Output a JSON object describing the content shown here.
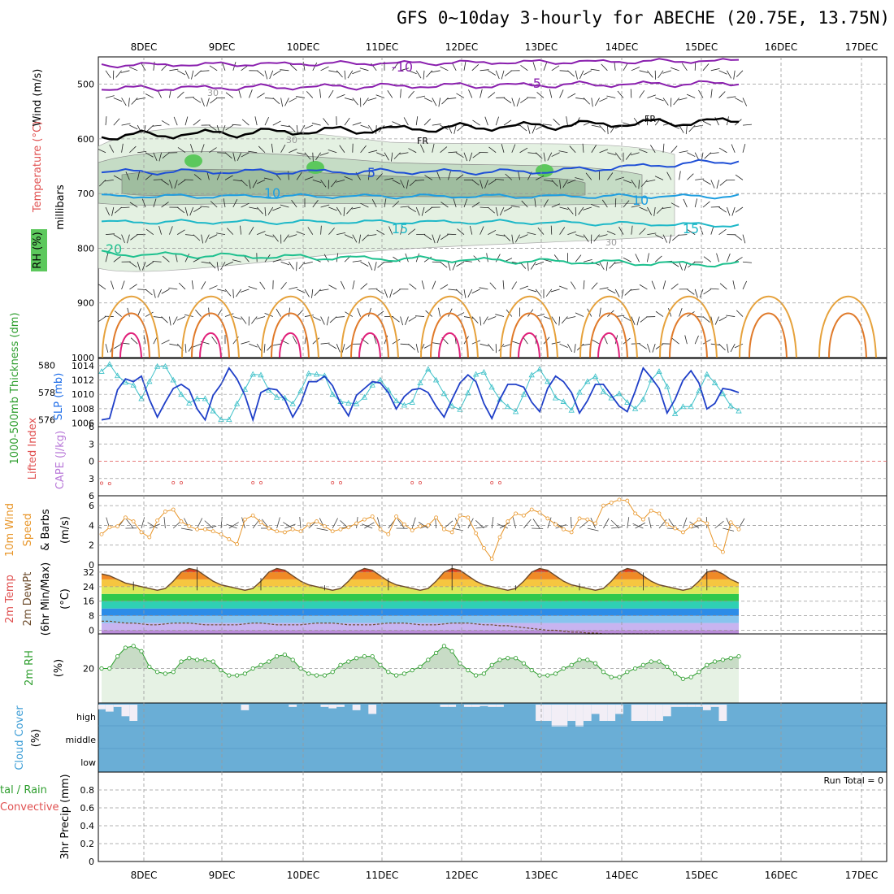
{
  "title": "GFS 0~10day 3-hourly for ABECHE (20.75E, 13.75N)",
  "colors": {
    "temp_neg10": "#8a1fae",
    "temp_neg5": "#8a1fae",
    "freezing": "#000000",
    "temp_5": "#1f4fd6",
    "temp_10": "#1e9ee0",
    "temp_15": "#1eb8c8",
    "temp_20": "#1ec08e",
    "thickness": "#1f3fc8",
    "slp": "#3cc0c8",
    "wind_speed": "#e8962a",
    "cloud_cover": "#6aaed6",
    "rh2m": "#2e9e2e"
  },
  "panels": {
    "upper": {
      "label_wind": "Wind (m/s)",
      "label_temp": "Temperature (°C)",
      "label_rh": "RH (%)",
      "label_mb": "millibars",
      "yticks": [
        "500",
        "600",
        "700",
        "800",
        "900",
        "1000"
      ],
      "contour_labels": [
        "-10",
        "-5",
        "FR",
        "FR",
        "5",
        "10",
        "10",
        "15",
        "15",
        "20",
        "30",
        "30",
        "30"
      ]
    },
    "thickness": {
      "label_thick": "1000-500mb Thickness (dm)",
      "label_slp": "SLP (mb)",
      "yticks_left": [
        "580",
        "578",
        "576"
      ],
      "yticks_right": [
        "1014",
        "1012",
        "1010",
        "1008",
        "1006"
      ]
    },
    "lifted": {
      "label_li": "Lifted Index",
      "label_cape": "CAPE (J/kg)",
      "yticks": [
        "-6",
        "-3",
        "0",
        "3",
        "6"
      ]
    },
    "wind10": {
      "label": "10m Wind",
      "label_speed": "Speed",
      "label_barbs": "& Barbs",
      "unit": "(m/s)",
      "yticks": [
        "6",
        "4",
        "2",
        "0"
      ]
    },
    "temp2m": {
      "label1": "2m Temp",
      "label2": "2m DewPt",
      "label3": "(6hr Min/Max)",
      "unit": "(°C)",
      "yticks": [
        "32",
        "24",
        "16",
        "8",
        "0"
      ]
    },
    "rh2m": {
      "label": "2m RH",
      "unit": "(%)",
      "yticks": [
        "20"
      ]
    },
    "cloud": {
      "label": "Cloud Cover",
      "unit": "(%)",
      "levels": [
        "high",
        "middle",
        "low"
      ]
    },
    "precip": {
      "label1": "tal / Rain",
      "label2": "Convective",
      "label3": "3hr Precip (mm)",
      "yticks": [
        "0.8",
        "0.6",
        "0.4",
        "0.2",
        "0"
      ],
      "run_total": "Run Total = 0"
    }
  },
  "chart_data": {
    "type": "line",
    "x_dates": [
      "8DEC",
      "9DEC",
      "10DEC",
      "11DEC",
      "12DEC",
      "13DEC",
      "14DEC",
      "15DEC",
      "16DEC",
      "17DEC"
    ],
    "time_step_hours": 3,
    "thickness_dm": [
      576.0,
      576.1,
      578.2,
      579.0,
      578.8,
      579.2,
      577.5,
      576.2,
      577.3,
      578.3,
      578.6,
      578.2,
      576.8,
      576.0,
      577.8,
      578.6,
      579.8,
      579.0,
      577.8,
      576.0,
      578.0,
      578.3,
      578.2,
      577.5,
      576.2,
      577.2,
      578.8,
      578.8,
      579.2,
      578.5,
      577.2,
      576.3,
      577.8,
      578.3,
      578.8,
      578.7,
      578.0,
      576.8,
      577.7,
      578.2,
      578.3,
      578.0,
      577.0,
      576.2,
      577.5,
      578.7,
      579.3,
      578.8,
      577.2,
      576.1,
      577.5,
      578.6,
      578.6,
      578.4,
      577.3,
      576.6,
      578.3,
      579.2,
      578.8,
      578.0,
      576.5,
      577.4,
      578.6,
      578.6,
      577.8,
      577.0,
      576.6,
      578.1,
      579.8,
      579.1,
      578.3,
      576.5,
      577.5,
      578.9,
      579.6,
      578.7,
      576.8,
      577.2,
      578.3,
      578.2,
      578.0
    ],
    "slp_mb": [
      1013.2,
      1014.2,
      1012.6,
      1011.7,
      1011.3,
      1009.4,
      1011.8,
      1013.9,
      1013.9,
      1012.0,
      1010.0,
      1008.8,
      1009.4,
      1009.4,
      1007.7,
      1006.5,
      1006.5,
      1008.7,
      1010.7,
      1012.8,
      1012.7,
      1010.6,
      1009.6,
      1009.5,
      1008.7,
      1010.5,
      1012.9,
      1012.8,
      1012.6,
      1010.0,
      1009.0,
      1008.8,
      1008.7,
      1009.6,
      1011.3,
      1012.0,
      1010.6,
      1009.1,
      1008.5,
      1008.9,
      1011.6,
      1013.5,
      1012.0,
      1010.1,
      1008.4,
      1007.9,
      1010.2,
      1012.8,
      1013.1,
      1011.0,
      1009.3,
      1008.3,
      1007.6,
      1010.0,
      1012.7,
      1013.5,
      1011.8,
      1009.5,
      1009.0,
      1007.8,
      1010.3,
      1011.8,
      1012.5,
      1010.4,
      1009.5,
      1010.1,
      1008.9,
      1008.0,
      1009.3,
      1012.0,
      1013.2,
      1011.1,
      1007.3,
      1008.3,
      1008.3,
      1010.5,
      1012.8,
      1011.6,
      1010.1,
      1008.4,
      1007.7
    ],
    "wind10m_ms": [
      3.1,
      3.8,
      3.9,
      4.8,
      4.4,
      3.3,
      2.8,
      4.5,
      5.4,
      5.6,
      4.4,
      3.9,
      3.6,
      3.6,
      3.4,
      3.1,
      2.6,
      2.1,
      4.6,
      5.0,
      4.3,
      3.7,
      3.4,
      3.3,
      3.6,
      3.4,
      4.1,
      4.4,
      3.9,
      3.4,
      3.6,
      3.8,
      4.2,
      4.6,
      4.9,
      3.6,
      3.1,
      4.9,
      4.1,
      3.5,
      3.9,
      4.0,
      4.8,
      3.6,
      3.3,
      5.0,
      4.8,
      3.2,
      1.7,
      0.6,
      2.8,
      4.4,
      5.2,
      5.0,
      5.6,
      5.3,
      4.7,
      4.1,
      3.6,
      3.3,
      4.7,
      4.6,
      4.2,
      6.0,
      6.3,
      6.6,
      6.5,
      5.2,
      4.6,
      5.5,
      5.2,
      4.1,
      3.7,
      3.3,
      3.9,
      4.6,
      4.2,
      2.0,
      1.3,
      4.3,
      3.6
    ],
    "temp2m_c": [
      31,
      30,
      28,
      26,
      25,
      24,
      23,
      22,
      23,
      27,
      32,
      34,
      33,
      30,
      27,
      25,
      24,
      23,
      22,
      23,
      27,
      32,
      34,
      33,
      30,
      27,
      25,
      24,
      23,
      22,
      23,
      27,
      32,
      34,
      33,
      30,
      27,
      25,
      24,
      23,
      22,
      23,
      27,
      32,
      34,
      33,
      30,
      27,
      25,
      24,
      23,
      22,
      23,
      27,
      32,
      34,
      33,
      30,
      27,
      25,
      24,
      23,
      22,
      23,
      27,
      32,
      34,
      33,
      30,
      27,
      25,
      24,
      23,
      22,
      23,
      27,
      32,
      33,
      31,
      28,
      26
    ],
    "dewpt2m_c": [
      5,
      5,
      4.5,
      4,
      4,
      3.5,
      3,
      3,
      3.5,
      4,
      4,
      4,
      3.5,
      3,
      3,
      3,
      3,
      3,
      3.5,
      4,
      4,
      3.5,
      3,
      3,
      3,
      3,
      3.5,
      4,
      4,
      4,
      3.5,
      3,
      3,
      3,
      3,
      3.5,
      4,
      4,
      4,
      3.5,
      3,
      3,
      3,
      3.5,
      4,
      4,
      4,
      3.5,
      3,
      3,
      2.5,
      2.5,
      2,
      1.5,
      1,
      0.5,
      0,
      0,
      -0.5,
      -1,
      -1,
      -1.5,
      -1.5,
      -2,
      -2,
      -2,
      -2,
      -2,
      -2,
      -2,
      -2,
      -2.5,
      -2.5,
      -2.5,
      -2.5,
      -2.5,
      -2.5,
      -3,
      -3,
      -3,
      -2.5
    ],
    "rh2m_pct": [
      20,
      20,
      27,
      32,
      33,
      30,
      21,
      18,
      17,
      18,
      24,
      26,
      25,
      25,
      24,
      19,
      16,
      16,
      17,
      20,
      22,
      24,
      27,
      28,
      25,
      20,
      17,
      16,
      16,
      18,
      22,
      24,
      26,
      27,
      27,
      22,
      18,
      16,
      17,
      19,
      21,
      25,
      29,
      33,
      30,
      23,
      19,
      16,
      17,
      22,
      25,
      26,
      26,
      23,
      19,
      16,
      16,
      17,
      20,
      22,
      25,
      25,
      23,
      18,
      15,
      15,
      18,
      20,
      22,
      24,
      24,
      21,
      17,
      14,
      15,
      18,
      22,
      24,
      25,
      26,
      27
    ],
    "cape_jkg": [
      1.5,
      1,
      0,
      0,
      0,
      0,
      0,
      0,
      0,
      2,
      2,
      0,
      0,
      0,
      0,
      0,
      0,
      0,
      0,
      2,
      2,
      0,
      0,
      0,
      0,
      0,
      0,
      0,
      0,
      2,
      2,
      0,
      0,
      0,
      0,
      0,
      0,
      0,
      0,
      2,
      2,
      0,
      0,
      0,
      0,
      0,
      0,
      0,
      0,
      2,
      2,
      0,
      0,
      0,
      0,
      0,
      0,
      0,
      0,
      0,
      0,
      0,
      0,
      0,
      0,
      0,
      0,
      0,
      0,
      0,
      0,
      0,
      0,
      0,
      0,
      0,
      0,
      0,
      0,
      0,
      0
    ],
    "cloud_high": [
      0.1,
      0.15,
      0.05,
      0.25,
      0.35,
      0,
      0,
      0,
      0,
      0,
      0,
      0,
      0,
      0,
      0,
      0,
      0,
      0,
      0.12,
      0,
      0,
      0,
      0,
      0,
      0.05,
      0,
      0,
      0,
      0.05,
      0.08,
      0.05,
      0,
      0.12,
      0,
      0.2,
      0,
      0,
      0,
      0,
      0,
      0,
      0,
      0,
      0.05,
      0.05,
      0,
      0.05,
      0.05,
      0.03,
      0.05,
      0.05,
      0,
      0,
      0,
      0,
      0.35,
      0.35,
      0.45,
      0.45,
      0.35,
      0.45,
      0.35,
      0.2,
      0.35,
      0.35,
      0.2,
      0,
      0.35,
      0.35,
      0.35,
      0.35,
      0.25,
      0.05,
      0.05,
      0.05,
      0.05,
      0.12,
      0.05,
      0.35,
      0,
      0
    ],
    "precip_mm": [
      0
    ],
    "ylim_thickness": [
      575.5,
      580.5
    ],
    "ylim_slp": [
      1005.5,
      1015
    ],
    "ylim_wind": [
      0,
      7
    ],
    "ylim_temp": [
      -2,
      36
    ],
    "ylim_rh": [
      0,
      40
    ],
    "ylim_precip": [
      0,
      1
    ],
    "grid": true
  }
}
